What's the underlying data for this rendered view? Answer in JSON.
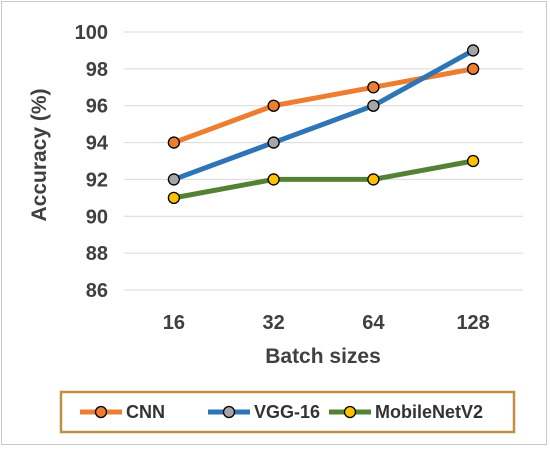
{
  "chart_data": {
    "type": "line",
    "xlabel": "Batch sizes",
    "ylabel": "Accuracy (%)",
    "categories": [
      "16",
      "32",
      "64",
      "128"
    ],
    "ylim": [
      86,
      100
    ],
    "yticks": [
      "86",
      "88",
      "90",
      "92",
      "94",
      "96",
      "98",
      "100"
    ],
    "grid": "horizontal",
    "legend_position": "bottom",
    "legend_border_color": "#c09040",
    "series": [
      {
        "name": "CNN",
        "values": [
          94,
          96,
          97,
          98
        ],
        "color": "#ed7d31",
        "marker_color": "#ed7d31"
      },
      {
        "name": "VGG-16",
        "values": [
          92,
          94,
          96,
          99
        ],
        "color": "#2e75b6",
        "marker_color": "#a5a5a5"
      },
      {
        "name": "MobileNetV2",
        "values": [
          91,
          92,
          92,
          93
        ],
        "color": "#548235",
        "marker_color": "#ffc000"
      }
    ]
  }
}
